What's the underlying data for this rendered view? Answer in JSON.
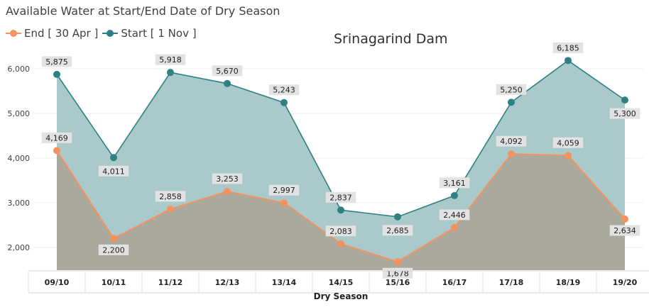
{
  "header": {
    "title": "Available Water at Start/End Date of Dry Season"
  },
  "chart_data": {
    "type": "area",
    "title": "Srinagarind Dam",
    "xlabel": "Dry  Season",
    "ylabel": "",
    "categories": [
      "09/10",
      "10/11",
      "11/12",
      "12/13",
      "13/14",
      "14/15",
      "15/16",
      "16/17",
      "17/18",
      "18/19",
      "19/20"
    ],
    "yticks": [
      2000,
      3000,
      4000,
      5000,
      6000
    ],
    "ytick_labels": [
      "2,000",
      "3,000",
      "4,000",
      "5,000",
      "6,000"
    ],
    "ylim": [
      1500,
      6400
    ],
    "grid": true,
    "legend_position": "top-left",
    "series": [
      {
        "name": "End [ 30 Apr ]",
        "color": "#F5925E",
        "values": [
          4169,
          2200,
          2858,
          3253,
          2997,
          2083,
          1678,
          2446,
          4092,
          4059,
          2634
        ],
        "labels": [
          "4,169",
          "2,200",
          "2,858",
          "3,253",
          "2,997",
          "2,083",
          "1,678",
          "2,446",
          "4,092",
          "4,059",
          "2,634"
        ]
      },
      {
        "name": "Start [ 1 Nov ]",
        "color": "#2E8083",
        "values": [
          5875,
          4011,
          5918,
          5670,
          5243,
          2837,
          2685,
          3161,
          5250,
          6185,
          5300
        ],
        "labels": [
          "5,875",
          "4,011",
          "5,918",
          "5,670",
          "5,243",
          "2,837",
          "2,685",
          "3,161",
          "5,250",
          "6,185",
          "5,300"
        ]
      }
    ]
  }
}
